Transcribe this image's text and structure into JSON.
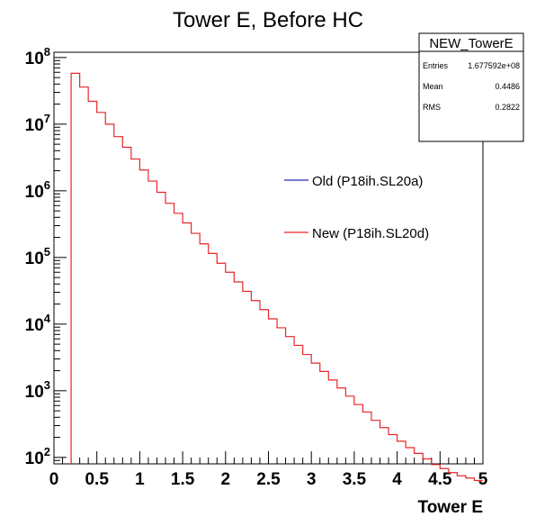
{
  "chart_data": {
    "type": "histogram",
    "title": "Tower E, Before HC",
    "xlabel": "Tower E",
    "ylabel": "",
    "xlim": [
      0,
      5
    ],
    "ylim": [
      80,
      120000000
    ],
    "y_scale": "log",
    "grid": false,
    "x_ticks": [
      "0",
      "0.5",
      "1",
      "1.5",
      "2",
      "2.5",
      "3",
      "3.5",
      "4",
      "4.5",
      "5"
    ],
    "y_ticks": [
      {
        "exp": "2",
        "value": 100
      },
      {
        "exp": "3",
        "value": 1000
      },
      {
        "exp": "4",
        "value": 10000
      },
      {
        "exp": "5",
        "value": 100000
      },
      {
        "exp": "6",
        "value": 1000000
      },
      {
        "exp": "7",
        "value": 10000000
      },
      {
        "exp": "8",
        "value": 100000000
      }
    ],
    "y_tick_base": "10",
    "bin_width": 0.1,
    "series": [
      {
        "name": "New (P18ih.SL20d)",
        "color": "#e8262a",
        "bin_low_edges": [
          0.2,
          0.3,
          0.4,
          0.5,
          0.6,
          0.7,
          0.8,
          0.9,
          1.0,
          1.1,
          1.2,
          1.3,
          1.4,
          1.5,
          1.6,
          1.7,
          1.8,
          1.9,
          2.0,
          2.1,
          2.2,
          2.3,
          2.4,
          2.5,
          2.6,
          2.7,
          2.8,
          2.9,
          3.0,
          3.1,
          3.2,
          3.3,
          3.4,
          3.5,
          3.6,
          3.7,
          3.8,
          3.9,
          4.0,
          4.1,
          4.2,
          4.3,
          4.4,
          4.5,
          4.6,
          4.7,
          4.8,
          4.9
        ],
        "values": [
          58000000,
          36000000,
          22000000,
          15000000,
          10000000,
          6500000,
          4500000,
          3000000,
          2050000,
          1400000,
          950000,
          650000,
          460000,
          330000,
          230000,
          160000,
          115000,
          82000,
          60000,
          43000,
          31000,
          22500,
          16500,
          12000,
          8800,
          6500,
          4800,
          3500,
          2600,
          1950,
          1450,
          1100,
          830,
          620,
          480,
          360,
          280,
          220,
          175,
          140,
          115,
          95,
          78,
          68,
          59,
          53,
          49,
          45
        ]
      },
      {
        "name": "Old (P18ih.SL20a)",
        "color": "#2a2ab8",
        "values": []
      }
    ],
    "stats_box": {
      "title": "NEW_TowerE",
      "rows": [
        {
          "label": "Entries",
          "value": "1.677592e+08"
        },
        {
          "label": "Mean",
          "value": "0.4486"
        },
        {
          "label": "RMS",
          "value": "0.2822"
        }
      ]
    },
    "legend": [
      {
        "label": "Old (P18ih.SL20a)",
        "color": "#2a2ab8"
      },
      {
        "label": "New (P18ih.SL20d)",
        "color": "#e8262a"
      }
    ],
    "legend_position": "right, middle"
  }
}
